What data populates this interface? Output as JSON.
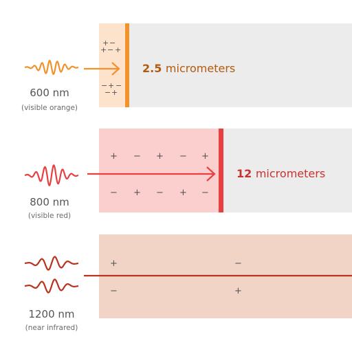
{
  "colors": {
    "orange": "#f2922c",
    "orange_bg": "#fde2cc",
    "red": "#e84040",
    "red_bg": "#fccfcf",
    "dark_red": "#b9321f",
    "infrared_bg": "#f1d4c6",
    "gray_bg": "#ececec",
    "orange_text": "#b25a0c",
    "red_text": "#c8322e",
    "label_text": "#555555"
  },
  "rows": [
    {
      "wavelength": "600 nm",
      "description": "(visible orange)",
      "distance_value": "2.5",
      "distance_unit": "micrometers",
      "wave_icon": "wave-packet-icon"
    },
    {
      "wavelength": "800 nm",
      "description": "(visible red)",
      "distance_value": "12",
      "distance_unit": "micrometers",
      "wave_icon": "wave-packet-icon"
    },
    {
      "wavelength": "1200 nm",
      "description": "(near infrared)",
      "wave_icon": "double-wave-packet-icon"
    }
  ]
}
